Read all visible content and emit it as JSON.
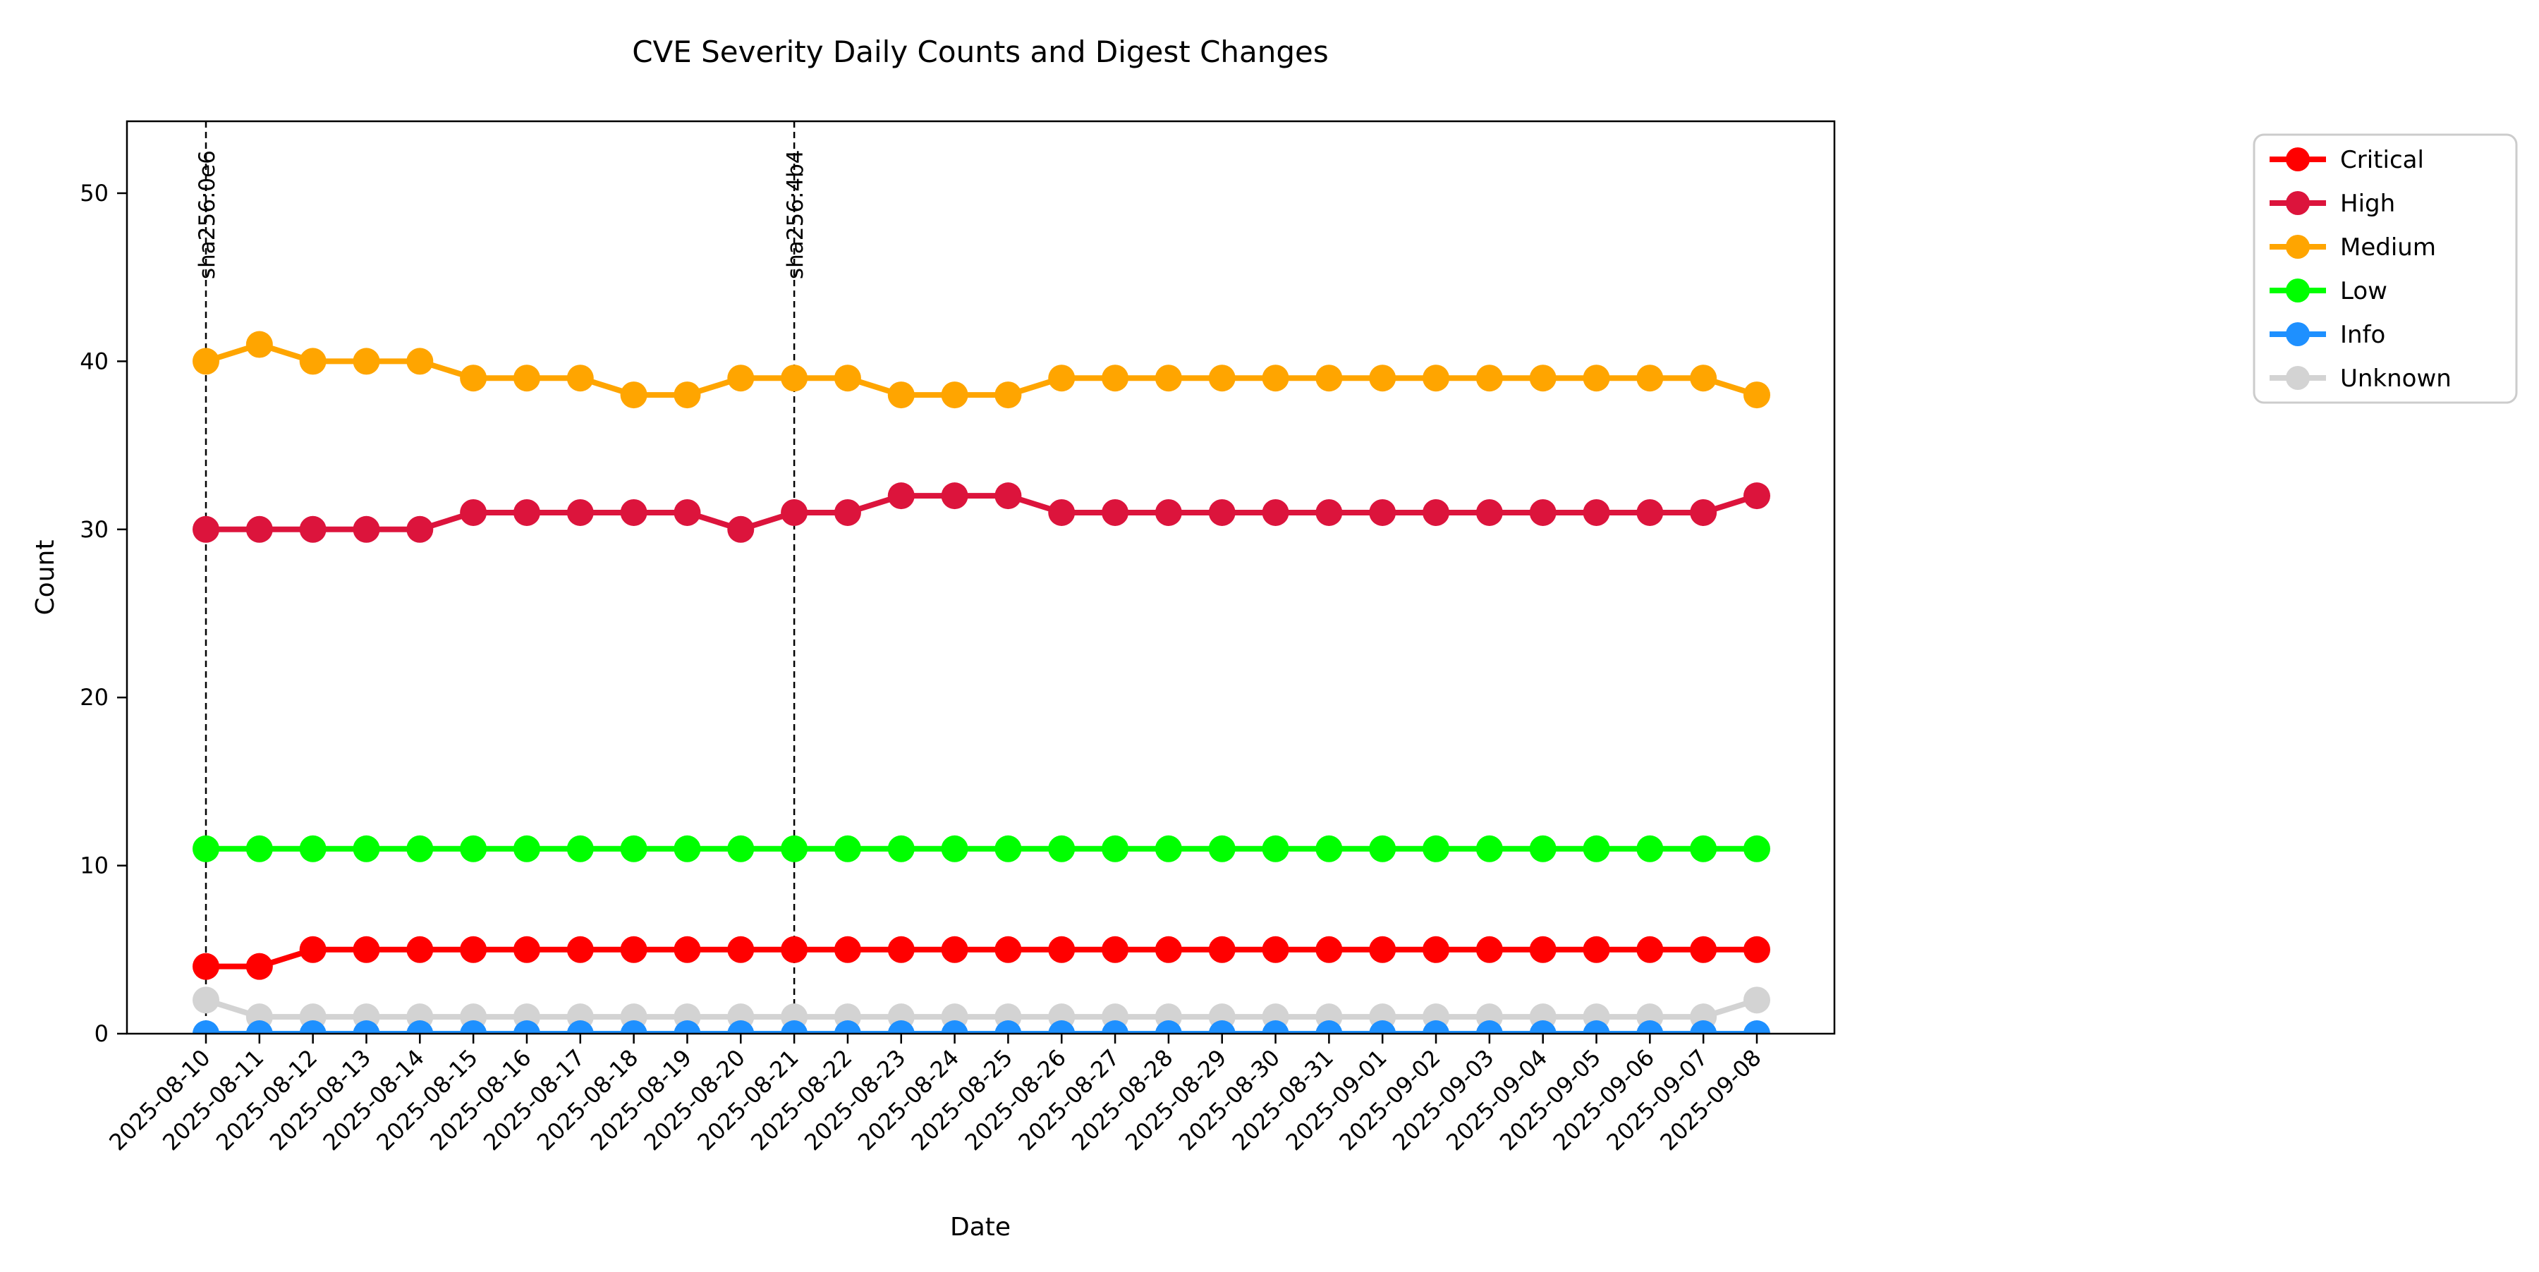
{
  "figure": {
    "title": "CVE Severity Daily Counts and Digest Changes",
    "xlabel": "Date",
    "ylabel": "Count"
  },
  "chart_data": {
    "type": "line",
    "title": "CVE Severity Daily Counts and Digest Changes",
    "xlabel": "Date",
    "ylabel": "Count",
    "x": [
      "2025-08-10",
      "2025-08-11",
      "2025-08-12",
      "2025-08-13",
      "2025-08-14",
      "2025-08-15",
      "2025-08-16",
      "2025-08-17",
      "2025-08-18",
      "2025-08-19",
      "2025-08-20",
      "2025-08-21",
      "2025-08-22",
      "2025-08-23",
      "2025-08-24",
      "2025-08-25",
      "2025-08-26",
      "2025-08-27",
      "2025-08-28",
      "2025-08-29",
      "2025-08-30",
      "2025-08-31",
      "2025-09-01",
      "2025-09-02",
      "2025-09-03",
      "2025-09-04",
      "2025-09-05",
      "2025-09-06",
      "2025-09-07",
      "2025-09-08"
    ],
    "series": [
      {
        "name": "Critical",
        "color": "#ff0000",
        "values": [
          4,
          4,
          5,
          5,
          5,
          5,
          5,
          5,
          5,
          5,
          5,
          5,
          5,
          5,
          5,
          5,
          5,
          5,
          5,
          5,
          5,
          5,
          5,
          5,
          5,
          5,
          5,
          5,
          5,
          5
        ]
      },
      {
        "name": "High",
        "color": "#dc143c",
        "values": [
          30,
          30,
          30,
          30,
          30,
          31,
          31,
          31,
          31,
          31,
          30,
          31,
          31,
          32,
          32,
          32,
          31,
          31,
          31,
          31,
          31,
          31,
          31,
          31,
          31,
          31,
          31,
          31,
          31,
          32
        ]
      },
      {
        "name": "Medium",
        "color": "#ffa500",
        "values": [
          40,
          41,
          40,
          40,
          40,
          39,
          39,
          39,
          38,
          38,
          39,
          39,
          39,
          38,
          38,
          38,
          39,
          39,
          39,
          39,
          39,
          39,
          39,
          39,
          39,
          39,
          39,
          39,
          39,
          38
        ]
      },
      {
        "name": "Low",
        "color": "#00ff00",
        "values": [
          11,
          11,
          11,
          11,
          11,
          11,
          11,
          11,
          11,
          11,
          11,
          11,
          11,
          11,
          11,
          11,
          11,
          11,
          11,
          11,
          11,
          11,
          11,
          11,
          11,
          11,
          11,
          11,
          11,
          11
        ]
      },
      {
        "name": "Info",
        "color": "#1e90ff",
        "values": [
          0,
          0,
          0,
          0,
          0,
          0,
          0,
          0,
          0,
          0,
          0,
          0,
          0,
          0,
          0,
          0,
          0,
          0,
          0,
          0,
          0,
          0,
          0,
          0,
          0,
          0,
          0,
          0,
          0,
          0
        ]
      },
      {
        "name": "Unknown",
        "color": "#d3d3d3",
        "values": [
          2,
          1,
          1,
          1,
          1,
          1,
          1,
          1,
          1,
          1,
          1,
          1,
          1,
          1,
          1,
          1,
          1,
          1,
          1,
          1,
          1,
          1,
          1,
          1,
          1,
          1,
          1,
          1,
          1,
          2
        ]
      }
    ],
    "legend_entries": [
      "Critical",
      "High",
      "Medium",
      "Low",
      "Info",
      "Unknown"
    ],
    "draw_order": [
      "Critical",
      "High",
      "Medium",
      "Low",
      "Unknown",
      "Info"
    ],
    "annotations": [
      {
        "x": "2025-08-10",
        "label": "sha256:0e6"
      },
      {
        "x": "2025-08-21",
        "label": "sha256:4b4"
      }
    ],
    "yticks": [
      0,
      10,
      20,
      30,
      40,
      50
    ],
    "ylim": [
      0,
      54.3
    ],
    "grid": false,
    "legend_position": "upper-right-outside",
    "annotation_line_style": "dashed",
    "axis_color": "#000000",
    "legend_border_color": "#cccccc",
    "marker": "circle"
  }
}
